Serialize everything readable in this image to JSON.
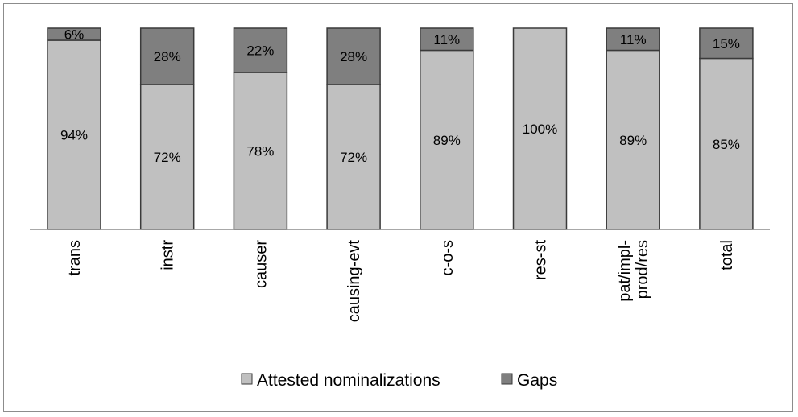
{
  "chart_data": {
    "type": "bar",
    "stacked": true,
    "percent_stacked": true,
    "categories": [
      "trans",
      "instr",
      "causer",
      "causing-evt",
      "c-o-s",
      "res-st",
      "pat/impl-prod/res",
      "total"
    ],
    "category_label_lines": [
      [
        "trans"
      ],
      [
        "instr"
      ],
      [
        "causer"
      ],
      [
        "causing-evt"
      ],
      [
        "c-o-s"
      ],
      [
        "res-st"
      ],
      [
        "pat/impl-",
        "prod/res"
      ],
      [
        "total"
      ]
    ],
    "series": [
      {
        "name": "Attested nominalizations",
        "color": "#c0c0c0",
        "values": [
          94,
          72,
          78,
          72,
          89,
          100,
          89,
          85
        ],
        "labels": [
          "94%",
          "72%",
          "78%",
          "72%",
          "89%",
          "100%",
          "89%",
          "85%"
        ]
      },
      {
        "name": "Gaps",
        "color": "#7f7f7f",
        "values": [
          6,
          28,
          22,
          28,
          11,
          0,
          11,
          15
        ],
        "labels": [
          "6%",
          "28%",
          "22%",
          "28%",
          "11%",
          "",
          "11%",
          "15%"
        ]
      }
    ],
    "ylim": [
      0,
      100
    ],
    "grid": false,
    "legend_position": "bottom",
    "title": "",
    "xlabel": "",
    "ylabel": ""
  }
}
